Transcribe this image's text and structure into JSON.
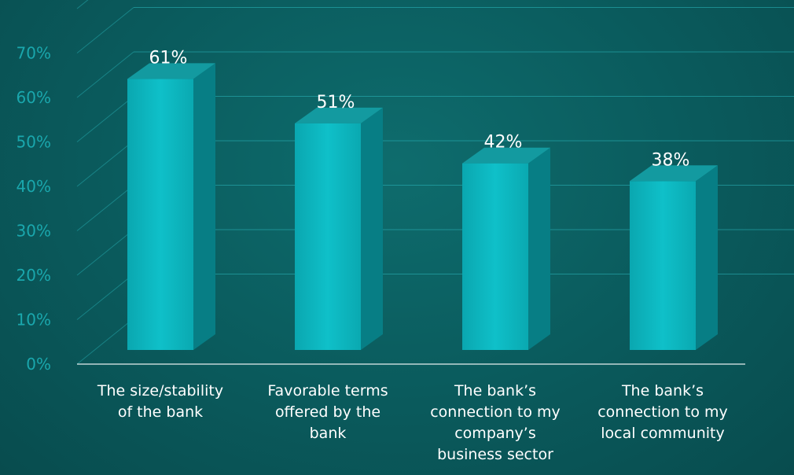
{
  "chart_data": {
    "type": "bar",
    "categories": [
      [
        "The size/stability",
        "of the bank"
      ],
      [
        "Favorable terms",
        "offered by the",
        "bank"
      ],
      [
        "The bank’s",
        "connection to my",
        "company’s",
        "business sector"
      ],
      [
        "The bank’s",
        "connection to my",
        "local community"
      ]
    ],
    "values": [
      61,
      51,
      42,
      38
    ],
    "data_labels": [
      "61%",
      "51%",
      "42%",
      "38%"
    ],
    "yticks": [
      "0%",
      "10%",
      "20%",
      "30%",
      "40%",
      "50%",
      "60%",
      "70%"
    ],
    "ylim": [
      0,
      70
    ],
    "grid": true,
    "style": "3d-column",
    "colors": {
      "bar_front": "#0bb6c0",
      "bar_side": "#077e85",
      "bar_top": "#139aa0",
      "grid": "#2bb8bd",
      "tick_text": "#1aa7ad"
    }
  }
}
